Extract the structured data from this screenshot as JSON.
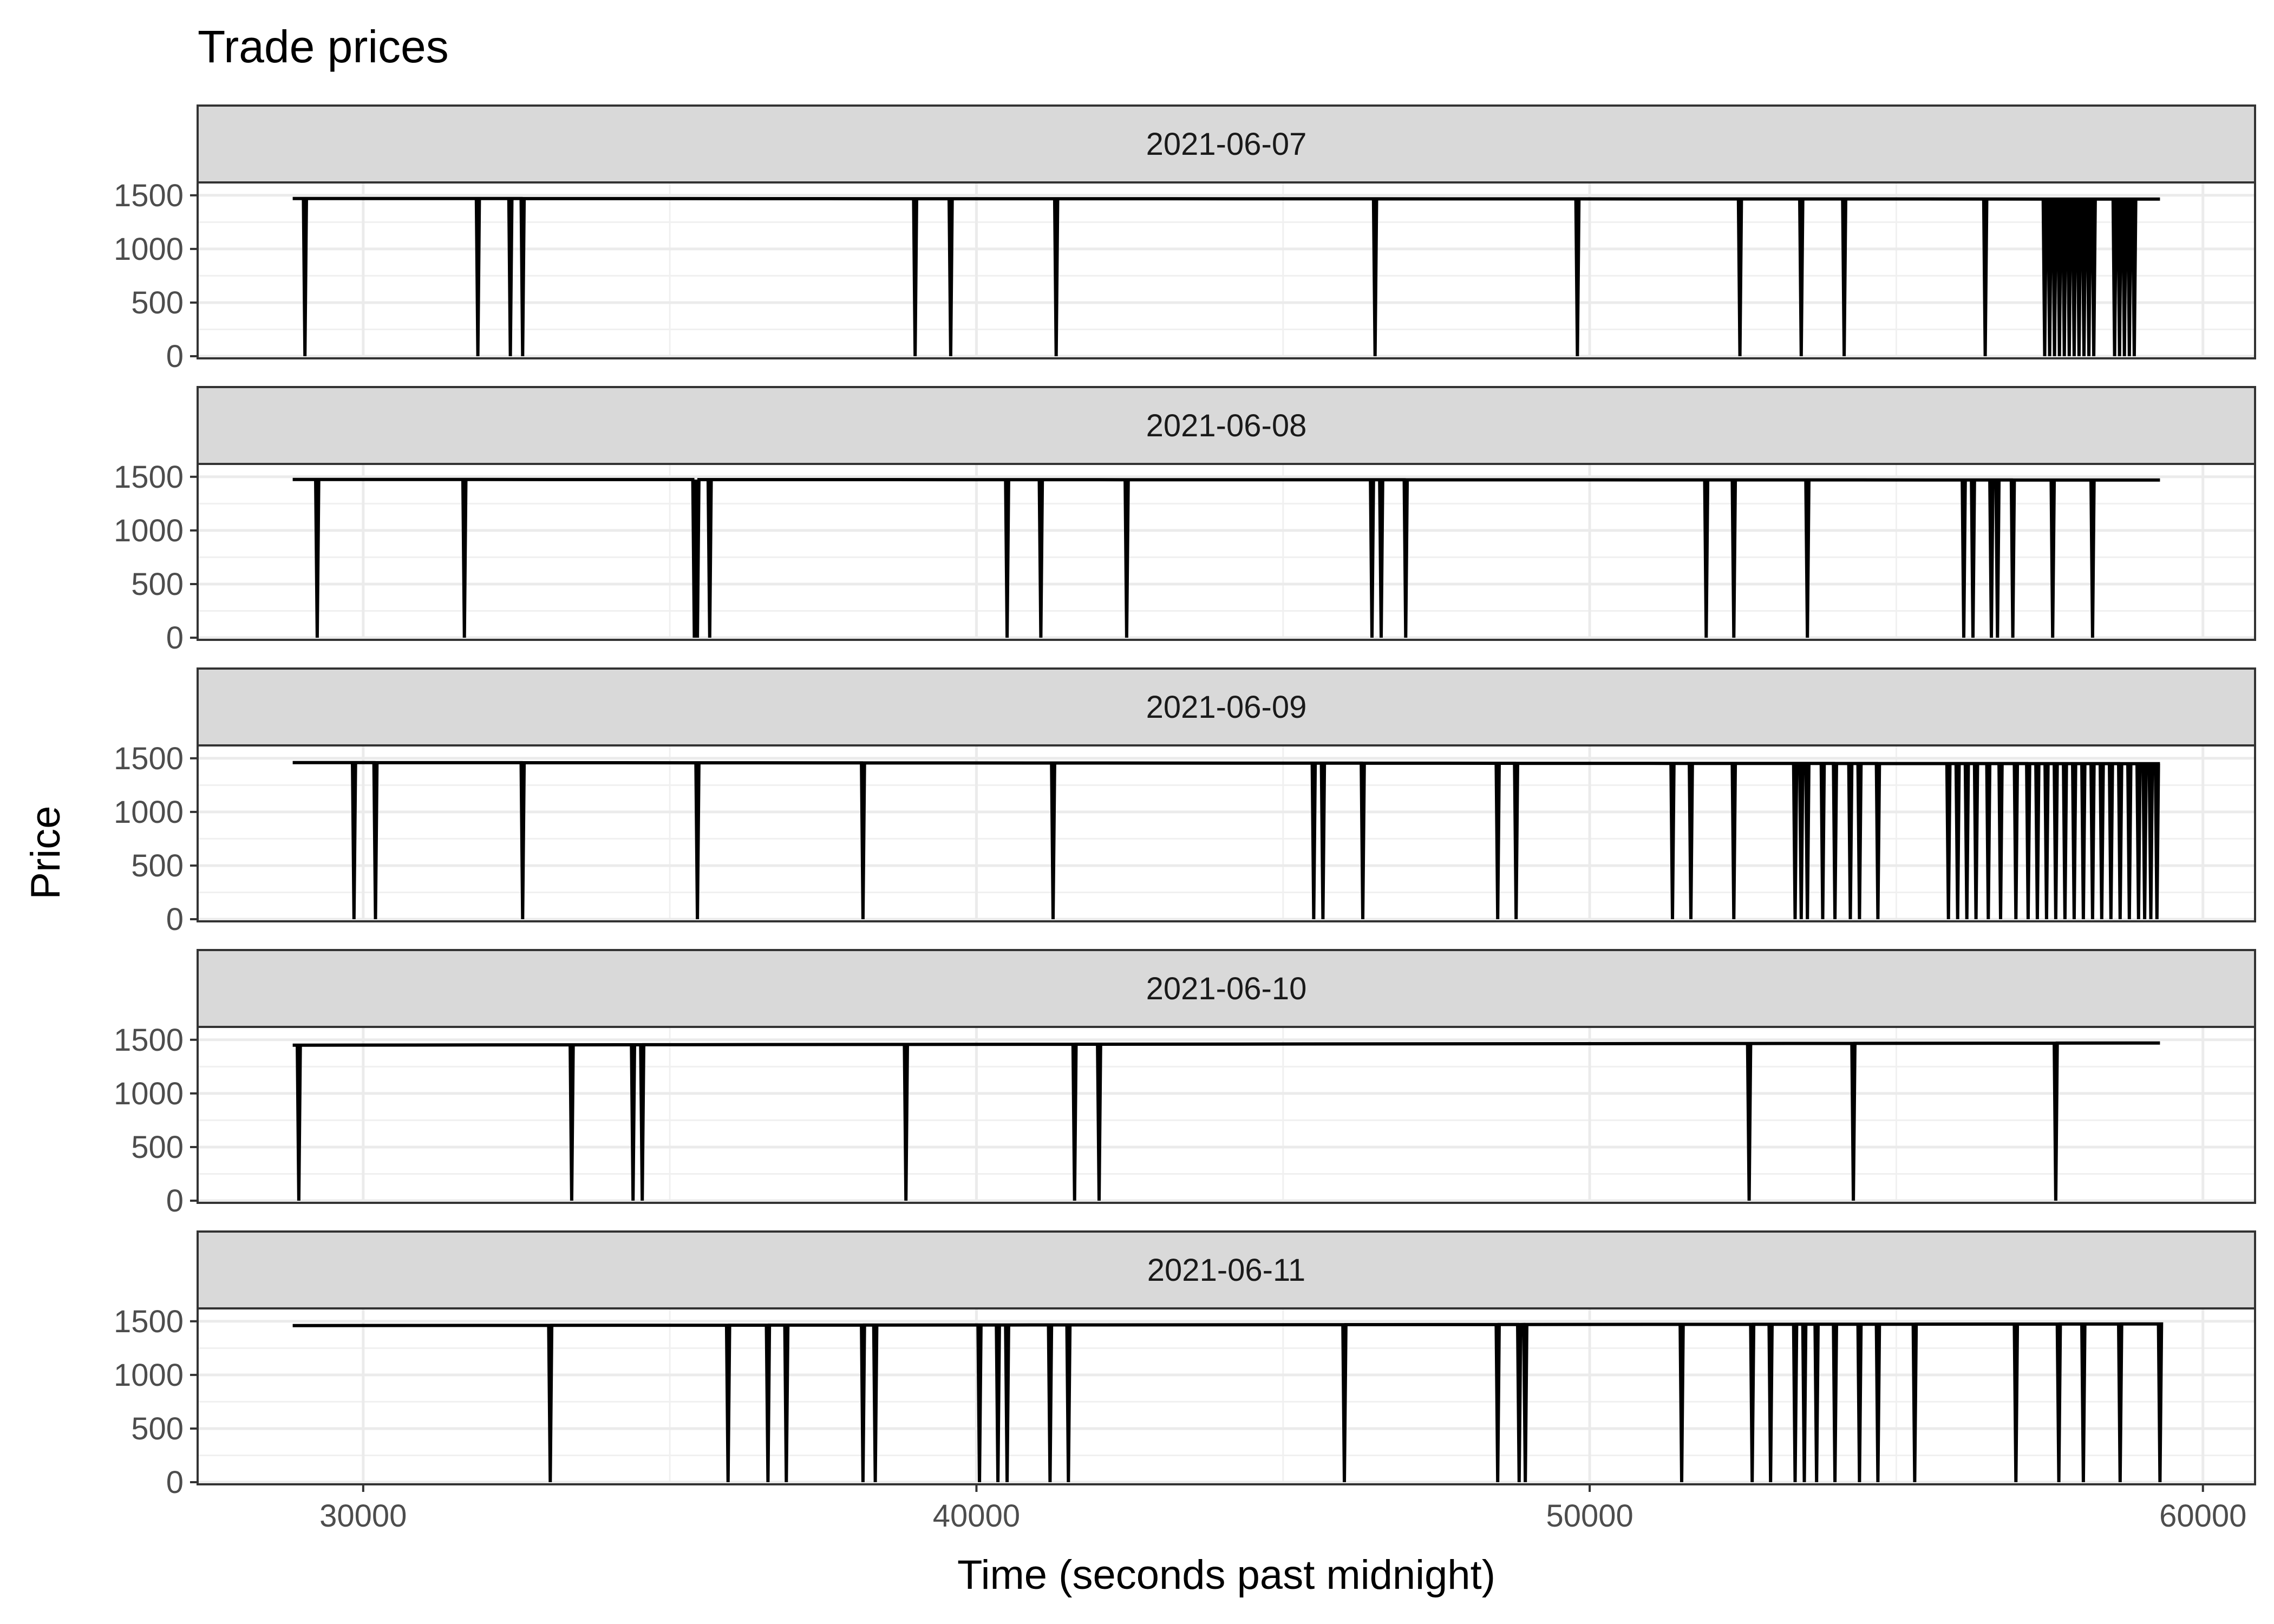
{
  "chart_data": {
    "type": "line",
    "title": "Trade prices",
    "xlabel": "Time (seconds past midnight)",
    "ylabel": "Price",
    "xlim": [
      27300,
      60850
    ],
    "ylim": [
      -20,
      1620
    ],
    "x_ticks": [
      30000,
      40000,
      50000,
      60000
    ],
    "y_ticks": [
      0,
      500,
      1000,
      1500
    ],
    "grid": true,
    "legend": "none",
    "facets": [
      {
        "label": "2021-06-07",
        "base_start": 1470,
        "base_end": 1465,
        "dips": [
          29050,
          31870,
          32400,
          32600,
          39000,
          39580,
          41300,
          46500,
          49800,
          52450,
          53450,
          54150,
          56450,
          57420,
          57500,
          57580,
          57660,
          57740,
          57820,
          57900,
          57980,
          58060,
          58140,
          58220,
          58560,
          58640,
          58720,
          58800,
          58880
        ]
      },
      {
        "label": "2021-06-08",
        "base_start": 1475,
        "base_end": 1470,
        "dips": [
          29250,
          31650,
          35400,
          35450,
          35650,
          40500,
          41050,
          42450,
          46450,
          46600,
          47000,
          51900,
          52350,
          53550,
          56100,
          56250,
          56550,
          56650,
          56900,
          57550,
          58200
        ]
      },
      {
        "label": "2021-06-09",
        "base_start": 1460,
        "base_end": 1450,
        "dips": [
          29850,
          30200,
          32600,
          35450,
          38150,
          41250,
          45500,
          45650,
          46300,
          48500,
          48800,
          51350,
          51650,
          52350,
          53350,
          53450,
          53550,
          53800,
          54000,
          54250,
          54400,
          54700,
          55850,
          56000,
          56150,
          56300,
          56500,
          56700,
          56950,
          57150,
          57300,
          57450,
          57600,
          57750,
          57900,
          58050,
          58200,
          58350,
          58500,
          58650,
          58800,
          58950,
          59050,
          59150,
          59250
        ]
      },
      {
        "label": "2021-06-10",
        "base_start": 1450,
        "base_end": 1470,
        "dips": [
          28950,
          33400,
          34400,
          34550,
          38850,
          41600,
          42000,
          52600,
          54300,
          57600
        ]
      },
      {
        "label": "2021-06-11",
        "base_start": 1460,
        "base_end": 1475,
        "dips": [
          33050,
          35950,
          36600,
          36900,
          38150,
          38350,
          40050,
          40350,
          40500,
          41200,
          41500,
          46000,
          48500,
          48850,
          48950,
          51500,
          52650,
          52950,
          53350,
          53500,
          53700,
          54000,
          54400,
          54700,
          55300,
          56950,
          57650,
          58050,
          58650,
          59300
        ]
      }
    ],
    "x_range": [
      28850,
      59300
    ]
  }
}
